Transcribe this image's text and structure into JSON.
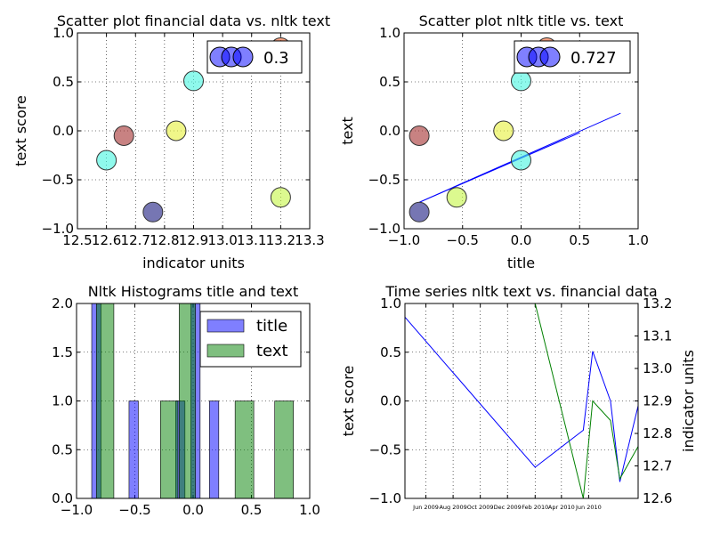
{
  "figure": {
    "background": "#ffffff"
  },
  "chart_data": [
    {
      "id": "scatter1",
      "type": "scatter",
      "title": "Scatter plot financial data vs. nltk text",
      "xlabel": "indicator units",
      "ylabel": "text score",
      "xlim": [
        12.5,
        13.3
      ],
      "ylim": [
        -1.0,
        1.0
      ],
      "xticks": [
        12.5,
        12.6,
        12.7,
        12.8,
        12.9,
        13.0,
        13.1,
        13.2,
        13.3
      ],
      "xtick_labels": [
        "12.5",
        "12.6",
        "12.7",
        "12.8",
        "12.9",
        "13.0",
        "13.1",
        "13.2",
        "13.3"
      ],
      "yticks": [
        -1.0,
        -0.5,
        0.0,
        0.5,
        1.0
      ],
      "ytick_labels": [
        "−1.0",
        "−0.5",
        "0.0",
        "0.5",
        "1.0"
      ],
      "grid": true,
      "points": [
        {
          "x": 12.6,
          "y": -0.3,
          "color": "#44f5e0"
        },
        {
          "x": 12.66,
          "y": -0.05,
          "color": "#a32f2f"
        },
        {
          "x": 12.76,
          "y": -0.83,
          "color": "#1a1a80"
        },
        {
          "x": 12.84,
          "y": 0.0,
          "color": "#e6f03a"
        },
        {
          "x": 12.9,
          "y": 0.51,
          "color": "#44f5e0"
        },
        {
          "x": 13.2,
          "y": -0.68,
          "color": "#c5f545"
        },
        {
          "x": 13.2,
          "y": 0.85,
          "color": "#f0602a"
        }
      ],
      "legend": {
        "label": "0.3",
        "position": "top-right",
        "marker_color": "#0000ff"
      }
    },
    {
      "id": "scatter2",
      "type": "scatter",
      "title": "Scatter plot nltk title vs. text",
      "xlabel": "title",
      "ylabel": "text",
      "xlim": [
        -1.0,
        1.0
      ],
      "ylim": [
        -1.0,
        1.0
      ],
      "xticks": [
        -1.0,
        -0.5,
        0.0,
        0.5,
        1.0
      ],
      "xtick_labels": [
        "−1.0",
        "−0.5",
        "0.0",
        "0.5",
        "1.0"
      ],
      "yticks": [
        -1.0,
        -0.5,
        0.0,
        0.5,
        1.0
      ],
      "ytick_labels": [
        "−1.0",
        "−0.5",
        "0.0",
        "0.5",
        "1.0"
      ],
      "grid": true,
      "points": [
        {
          "x": -0.87,
          "y": -0.05,
          "color": "#a32f2f"
        },
        {
          "x": -0.87,
          "y": -0.83,
          "color": "#1a1a80"
        },
        {
          "x": -0.55,
          "y": -0.68,
          "color": "#c5f545"
        },
        {
          "x": -0.15,
          "y": 0.0,
          "color": "#e6f03a"
        },
        {
          "x": 0.0,
          "y": -0.3,
          "color": "#44f5e0"
        },
        {
          "x": 0.0,
          "y": 0.51,
          "color": "#44f5e0"
        },
        {
          "x": 0.22,
          "y": 0.85,
          "color": "#f0602a"
        }
      ],
      "fit_lines": [
        {
          "x": [
            -0.87,
            0.85
          ],
          "y": [
            -0.73,
            0.18
          ],
          "color": "#0000ff"
        },
        {
          "x": [
            -0.87,
            0.5
          ],
          "y": [
            -0.73,
            -0.02
          ],
          "color": "#0000ff"
        }
      ],
      "legend": {
        "label": "0.727",
        "position": "top-right",
        "marker_color": "#0000ff"
      }
    },
    {
      "id": "hist",
      "type": "bar",
      "title": "Nltk Histograms title and text",
      "xlim": [
        -1.0,
        1.0
      ],
      "ylim": [
        0.0,
        2.0
      ],
      "xticks": [
        -1.0,
        -0.5,
        0.0,
        0.5,
        1.0
      ],
      "xtick_labels": [
        "−1.0",
        "−0.5",
        "0.0",
        "0.5",
        "1.0"
      ],
      "yticks": [
        0.0,
        0.5,
        1.0,
        1.5,
        2.0
      ],
      "ytick_labels": [
        "0.0",
        "0.5",
        "1.0",
        "1.5",
        "2.0"
      ],
      "grid": true,
      "series": [
        {
          "name": "title",
          "color": "#0000ff",
          "bars": [
            {
              "x0": -0.87,
              "x1": -0.79,
              "value": 2
            },
            {
              "x0": -0.55,
              "x1": -0.47,
              "value": 1
            },
            {
              "x0": -0.15,
              "x1": -0.07,
              "value": 1
            },
            {
              "x0": -0.02,
              "x1": 0.06,
              "value": 2
            },
            {
              "x0": 0.14,
              "x1": 0.22,
              "value": 1
            }
          ]
        },
        {
          "name": "text",
          "color": "#008000",
          "bars": [
            {
              "x0": -0.83,
              "x1": -0.68,
              "value": 2
            },
            {
              "x0": -0.28,
              "x1": -0.13,
              "value": 1
            },
            {
              "x0": -0.12,
              "x1": 0.02,
              "value": 2
            },
            {
              "x0": 0.36,
              "x1": 0.52,
              "value": 1
            },
            {
              "x0": 0.7,
              "x1": 0.86,
              "value": 1
            }
          ]
        }
      ],
      "legend_position": "top-right"
    },
    {
      "id": "timeseries",
      "type": "line",
      "title": "Time series nltk text vs. financial data",
      "ylabel": "text score",
      "y2label": "indicator units",
      "xlim": [
        "2009-04-15",
        "2010-09-20"
      ],
      "xticks": [
        "2009-06-01",
        "2009-08-01",
        "2009-10-01",
        "2009-12-01",
        "2010-02-01",
        "2010-04-01",
        "2010-06-01"
      ],
      "xtick_labels": [
        "Jun 2009",
        "Aug 2009",
        "Oct 2009",
        "Dec 2009",
        "Feb 2010",
        "Apr 2010",
        "Jun 2010"
      ],
      "ylim": [
        -1.0,
        1.0
      ],
      "yticks": [
        -1.0,
        -0.5,
        0.0,
        0.5,
        1.0
      ],
      "ytick_labels": [
        "−1.0",
        "−0.5",
        "0.0",
        "0.5",
        "1.0"
      ],
      "y2lim": [
        12.6,
        13.2
      ],
      "y2ticks": [
        12.6,
        12.7,
        12.8,
        12.9,
        13.0,
        13.1,
        13.2
      ],
      "y2tick_labels": [
        "12.6",
        "12.7",
        "12.8",
        "12.9",
        "13.0",
        "13.1",
        "13.2"
      ],
      "grid": true,
      "series": [
        {
          "axis": "left",
          "color": "#0000ff",
          "x": [
            "2009-04-15",
            "2010-02-01",
            "2010-05-20",
            "2010-06-10",
            "2010-07-20",
            "2010-08-10",
            "2010-09-20"
          ],
          "y": [
            0.86,
            -0.68,
            -0.3,
            0.51,
            0.0,
            -0.83,
            -0.05
          ]
        },
        {
          "axis": "right",
          "color": "#008000",
          "x": [
            "2009-04-15",
            "2010-02-01",
            "2010-05-20",
            "2010-06-10",
            "2010-07-20",
            "2010-08-10",
            "2010-09-20"
          ],
          "y": [
            13.2,
            13.2,
            12.6,
            12.9,
            12.84,
            12.66,
            12.76
          ]
        }
      ]
    }
  ]
}
